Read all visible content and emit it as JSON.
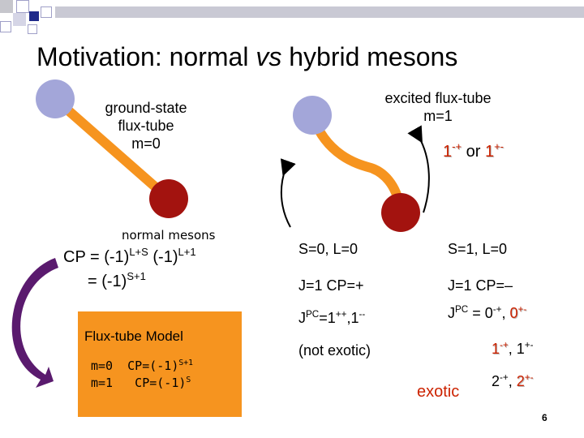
{
  "slide": {
    "title_part1": "Motivation: normal ",
    "title_vs": "vs",
    "title_part2": " hybrid mesons",
    "page_number": "6"
  },
  "left_diagram": {
    "line1": "ground-state",
    "line2": "flux-tube",
    "line3": "m=0",
    "caption": "normal mesons"
  },
  "right_diagram": {
    "line1": "excited flux-tube",
    "line2": "m=1",
    "jpc_a": "1",
    "jpc_a_sup": "-+",
    "or": "or",
    "jpc_b": "1",
    "jpc_b_sup": "+-"
  },
  "cp_formula": {
    "line1_prefix": "CP = (-1)",
    "line1_sup1": "L+S",
    "line1_mid": " (-1)",
    "line1_sup2": "L+1",
    "line2_prefix": "= (-1)",
    "line2_sup": "S+1"
  },
  "fluxtube_box": {
    "title": "Flux-tube Model",
    "row1_prefix": "m=0  CP=(-1)",
    "row1_sup": "S+1",
    "row2_prefix": "m=1   CP=(-1)",
    "row2_sup": "S"
  },
  "column1": {
    "header": "S=0, L=0",
    "jcp": "J=1  CP=+",
    "jpc_prefix": "J",
    "jpc_sup": "PC",
    "jpc_value": "=1",
    "jpc_value_sup": "++",
    "jpc_sep": ",1",
    "jpc_sep_sup": "--",
    "note": "(not exotic)"
  },
  "column2": {
    "header": "S=1, L=0",
    "jcp": "J=1  CP=–",
    "jpc_prefix": "J",
    "jpc_sup": "PC",
    "jpc_eq": " = 0",
    "jpc_v1_sup": "-+",
    "jpc_comma": ",",
    "jpc_v2": "0",
    "jpc_v2_sup": "+-",
    "line2_v1": "1",
    "line2_v1_sup": "-+",
    "line2_comma": ",",
    "line2_v2": "1",
    "line2_v2_sup": "+-",
    "exotic": "exotic",
    "line3_v1": "2",
    "line3_v1_sup": "-+",
    "line3_comma": ",",
    "line3_v2": "2",
    "line3_v2_sup": "+-"
  },
  "colors": {
    "quark_blue": "#a3a6d9",
    "quark_red": "#a3130f",
    "tube_orange": "#f6941f",
    "arrow_purple": "#5a1a6e",
    "exotic_red": "#cc2200"
  }
}
